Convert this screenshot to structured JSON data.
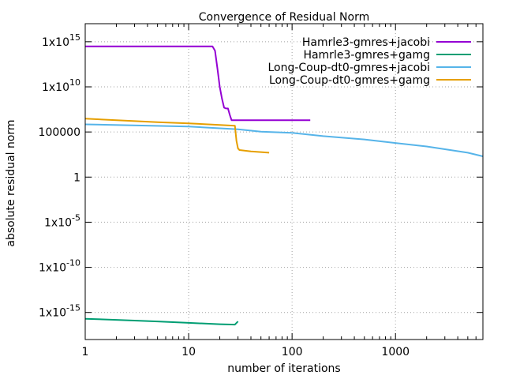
{
  "chart_data": {
    "type": "line",
    "title": "Convergence of Residual Norm",
    "xlabel": "number of iterations",
    "ylabel": "absolute residual norm",
    "xscale": "log",
    "yscale": "log",
    "xlim": [
      1,
      7000
    ],
    "ylim": [
      1e-18,
      1e+17
    ],
    "grid": true,
    "legend_position": "top-right",
    "x_ticks": [
      {
        "value": 1,
        "label": "1"
      },
      {
        "value": 10,
        "label": "10"
      },
      {
        "value": 100,
        "label": "100"
      },
      {
        "value": 1000,
        "label": "1000"
      }
    ],
    "y_ticks": [
      {
        "value": 1000000000000000.0,
        "label": "1x10",
        "sup": "15"
      },
      {
        "value": 10000000000.0,
        "label": "1x10",
        "sup": "10"
      },
      {
        "value": 100000.0,
        "label": "100000",
        "sup": ""
      },
      {
        "value": 1,
        "label": "1",
        "sup": ""
      },
      {
        "value": 1e-05,
        "label": "1x10",
        "sup": "-5"
      },
      {
        "value": 1e-10,
        "label": "1x10",
        "sup": "-10"
      },
      {
        "value": 1e-15,
        "label": "1x10",
        "sup": "-15"
      }
    ],
    "series": [
      {
        "name": "Hamrle3-gmres+jacobi",
        "color": "#9400d3",
        "points": [
          [
            1,
            300000000000000.0
          ],
          [
            17,
            300000000000000.0
          ],
          [
            18,
            100000000000000.0
          ],
          [
            19,
            1000000000000.0
          ],
          [
            20,
            10000000000.0
          ],
          [
            21,
            500000000.0
          ],
          [
            22,
            50000000.0
          ],
          [
            23,
            40000000.0
          ],
          [
            24,
            40000000.0
          ],
          [
            25,
            8000000.0
          ],
          [
            26,
            2000000.0
          ],
          [
            150,
            2000000.0
          ]
        ]
      },
      {
        "name": "Hamrle3-gmres+gamg",
        "color": "#009e73",
        "points": [
          [
            1,
            2e-16
          ],
          [
            2,
            1.5e-16
          ],
          [
            5,
            1e-16
          ],
          [
            10,
            7e-17
          ],
          [
            20,
            5e-17
          ],
          [
            28,
            4.5e-17
          ],
          [
            30,
            1e-16
          ]
        ]
      },
      {
        "name": "Long-Coup-dt0-gmres+jacobi",
        "color": "#56b4e9",
        "points": [
          [
            1,
            700000.0
          ],
          [
            10,
            400000.0
          ],
          [
            30,
            200000.0
          ],
          [
            50,
            110000.0
          ],
          [
            100,
            80000.0
          ],
          [
            200,
            35000.0
          ],
          [
            500,
            15000.0
          ],
          [
            1000,
            6000.0
          ],
          [
            2000,
            2500.0
          ],
          [
            5000,
            500
          ],
          [
            7000,
            200
          ]
        ]
      },
      {
        "name": "Long-Coup-dt0-gmres+gamg",
        "color": "#e69f00",
        "points": [
          [
            1,
            3000000.0
          ],
          [
            5,
            1200000.0
          ],
          [
            10,
            900000.0
          ],
          [
            20,
            600000.0
          ],
          [
            28,
            500000.0
          ],
          [
            29,
            10000.0
          ],
          [
            30,
            1500.0
          ],
          [
            31,
            1000.0
          ],
          [
            40,
            700.0
          ],
          [
            60,
            500.0
          ]
        ]
      }
    ]
  }
}
